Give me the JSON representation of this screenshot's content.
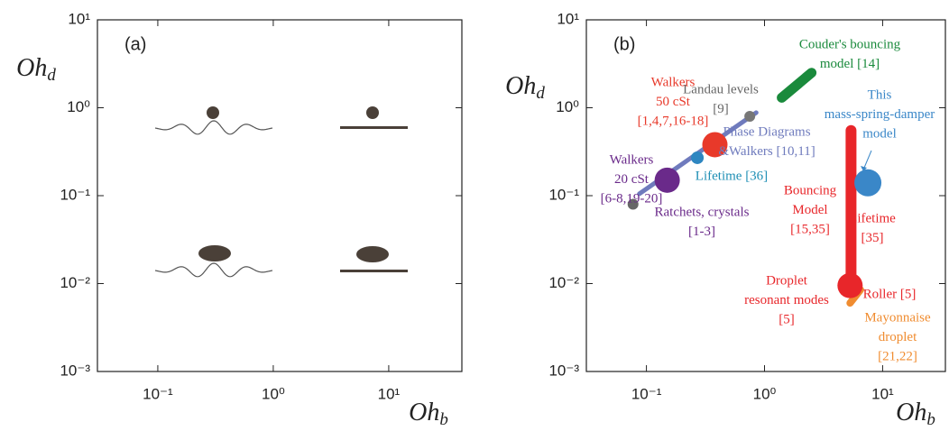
{
  "chart_data": [
    {
      "type": "scatter",
      "panel_label": "(a)",
      "xscale": "log",
      "yscale": "log",
      "xlim": [
        0.03,
        43
      ],
      "ylim": [
        0.001,
        10
      ],
      "xticks": [
        {
          "value": 0.1,
          "label": "10⁻¹"
        },
        {
          "value": 1,
          "label": "10⁰"
        },
        {
          "value": 10,
          "label": "10¹"
        }
      ],
      "yticks": [
        {
          "value": 0.001,
          "label": "10⁻³"
        },
        {
          "value": 0.01,
          "label": "10⁻²"
        },
        {
          "value": 0.1,
          "label": "10⁻¹"
        },
        {
          "value": 1,
          "label": "10⁰"
        },
        {
          "value": 10,
          "label": "10¹"
        }
      ],
      "x_label": {
        "base": "Oh",
        "sub": "b"
      },
      "y_label": {
        "base": "Oh",
        "sub": "d"
      }
    },
    {
      "type": "scatter",
      "panel_label": "(b)",
      "xscale": "log",
      "yscale": "log",
      "xlim": [
        0.031,
        34
      ],
      "ylim": [
        0.001,
        10
      ],
      "xticks": [
        {
          "value": 0.1,
          "label": "10⁻¹"
        },
        {
          "value": 1,
          "label": "10⁰"
        },
        {
          "value": 10,
          "label": "10¹"
        }
      ],
      "yticks": [
        {
          "value": 0.001,
          "label": "10⁻³"
        },
        {
          "value": 0.01,
          "label": "10⁻²"
        },
        {
          "value": 0.1,
          "label": "10⁻¹"
        },
        {
          "value": 1,
          "label": "10⁰"
        },
        {
          "value": 10,
          "label": "10¹"
        }
      ],
      "x_label": {
        "base": "Oh",
        "sub": "b"
      },
      "y_label": {
        "base": "Oh",
        "sub": "d"
      },
      "segments": [
        {
          "x": [
            0.087,
            0.85
          ],
          "y": [
            0.105,
            0.88
          ],
          "color": "#6f7bbd",
          "width": 5
        },
        {
          "x": [
            1.4,
            2.5
          ],
          "y": [
            1.3,
            2.5
          ],
          "color": "#1a8a3c",
          "width": 11
        },
        {
          "x": [
            5.4,
            5.4
          ],
          "y": [
            0.55,
            0.01
          ],
          "color": "#e8262a",
          "width": 12
        },
        {
          "x": [
            5.3,
            6.5
          ],
          "y": [
            0.006,
            0.0085
          ],
          "color": "#f08c30",
          "width": 8
        }
      ],
      "points": [
        {
          "x": 0.077,
          "y": 0.08,
          "color": "#666666",
          "size": 6
        },
        {
          "x": 0.75,
          "y": 0.8,
          "color": "#777777",
          "size": 6
        },
        {
          "x": 0.15,
          "y": 0.15,
          "color": "#6a2a8a",
          "size": 14
        },
        {
          "x": 0.27,
          "y": 0.27,
          "color": "#2e86c1",
          "size": 7
        },
        {
          "x": 0.38,
          "y": 0.38,
          "color": "#e8392a",
          "size": 14
        },
        {
          "x": 7.5,
          "y": 0.14,
          "color": "#3a87c8",
          "size": 15
        },
        {
          "x": 5.3,
          "y": 0.0095,
          "color": "#e8262a",
          "size": 14
        }
      ],
      "annotations": [
        {
          "lines": [
            "Couder's bouncing",
            "model [14]"
          ],
          "color": "#1a8a3c"
        },
        {
          "lines": [
            "Landau levels",
            "[9]"
          ],
          "color": "#666666"
        },
        {
          "lines": [
            "Walkers",
            "50 cSt",
            "[1,4,7,16-18]"
          ],
          "color": "#e8392a"
        },
        {
          "lines": [
            "Phase Diagrams",
            "&Walkers [10,11]"
          ],
          "color": "#6f7bbd"
        },
        {
          "lines": [
            "This",
            "mass-spring-damper",
            "model"
          ],
          "color": "#3a87c8"
        },
        {
          "lines": [
            "Walkers",
            "20 cSt",
            "[6-8,19-20]"
          ],
          "color": "#6a2a8a"
        },
        {
          "lines": [
            "Lifetime [36]"
          ],
          "color": "#1f8fb5"
        },
        {
          "lines": [
            "Ratchets, crystals",
            "[1-3]"
          ],
          "color": "#6a2a8a"
        },
        {
          "lines": [
            "Bouncing",
            "Model",
            "[15,35]"
          ],
          "color": "#e8262a"
        },
        {
          "lines": [
            "Lifetime",
            "[35]"
          ],
          "color": "#e8262a"
        },
        {
          "lines": [
            "Droplet",
            "resonant modes",
            "[5]"
          ],
          "color": "#e8262a"
        },
        {
          "lines": [
            "Roller [5]"
          ],
          "color": "#e8262a"
        },
        {
          "lines": [
            "Mayonnaise",
            "droplet",
            "[21,22]"
          ],
          "color": "#f08c30"
        }
      ]
    }
  ]
}
